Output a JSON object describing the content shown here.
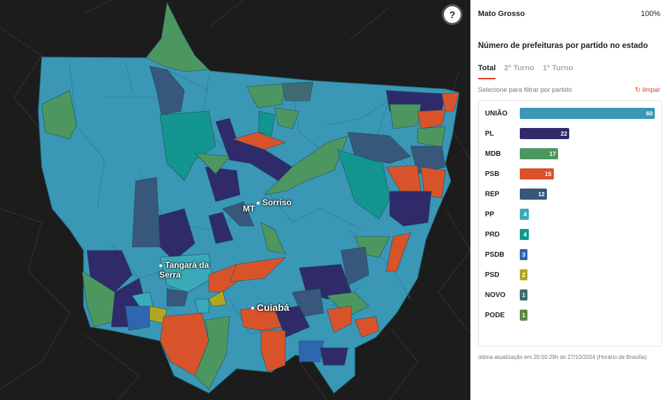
{
  "map": {
    "help_label": "?",
    "cities": [
      "Sorriso",
      "MT",
      "Tangará da Serra",
      "Cuiabá"
    ]
  },
  "panel": {
    "state": "Mato Grosso",
    "percent": "100%",
    "subtitle": "Número de prefeituras por partido no estado",
    "tabs": [
      {
        "label": "Total",
        "active": true
      },
      {
        "label": "2º Turno",
        "active": false
      },
      {
        "label": "1º Turno",
        "active": false
      }
    ],
    "filter_hint": "Selecione para filtrar por partido",
    "clear_label": "limpar",
    "footer": "última atualização em 20:50:29h de 27/10/2024 (Horário de Brasília)"
  },
  "chart_data": {
    "type": "bar",
    "categories": [
      "UNIÃO",
      "PL",
      "MDB",
      "PSB",
      "REP",
      "PP",
      "PRD",
      "PSDB",
      "PSD",
      "NOVO",
      "PODE"
    ],
    "values": [
      60,
      22,
      17,
      15,
      12,
      4,
      4,
      3,
      2,
      1,
      1
    ],
    "colors": [
      "#3a97b5",
      "#2f2b6b",
      "#4c9760",
      "#d9532a",
      "#37587a",
      "#3aaab8",
      "#12968f",
      "#2e66b0",
      "#b3a71f",
      "#3e6b72",
      "#5a8a40"
    ],
    "max": 60
  }
}
